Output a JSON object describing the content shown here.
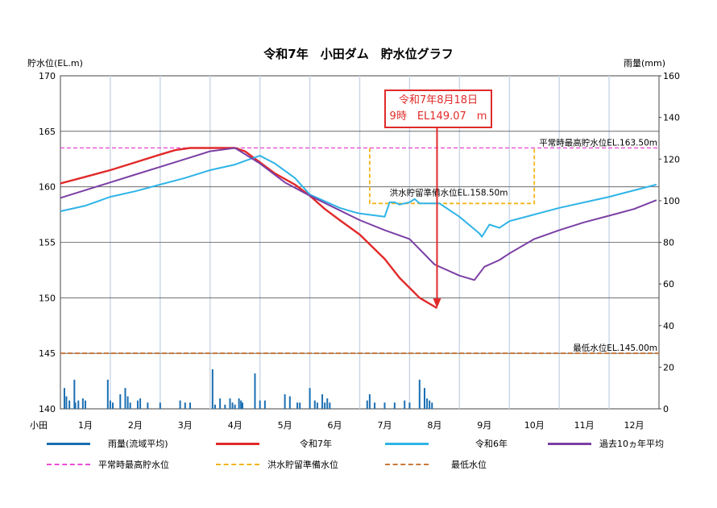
{
  "title": "令和7年　小田ダム　貯水位グラフ",
  "y_left_label": "貯水位(EL.m)",
  "y_right_label": "雨量(mm)",
  "station": "小田",
  "callout": {
    "line1": "令和7年8月18日",
    "line2": "9時　EL149.07　m"
  },
  "annotations": {
    "normal_max": "平常時最高貯水位EL.163.50m",
    "flood_prep": "洪水貯留準備水位EL.158.50m",
    "minimum": "最低水位EL.145.00m"
  },
  "legend": [
    {
      "label": "雨量(流域平均)",
      "color": "#1b6fb3",
      "style": "solid"
    },
    {
      "label": "令和7年",
      "color": "#e12a2a",
      "style": "solid"
    },
    {
      "label": "令和6年",
      "color": "#2fb4e6",
      "style": "solid"
    },
    {
      "label": "過去10ヵ年平均",
      "color": "#7b3fa4",
      "style": "solid"
    },
    {
      "label": "平常時最高貯水位",
      "color": "#e84fd3",
      "style": "dashed"
    },
    {
      "label": "洪水貯留準備水位",
      "color": "#f2b51a",
      "style": "dashed"
    },
    {
      "label": "最低水位",
      "color": "#c87a3c",
      "style": "dashed"
    }
  ],
  "chart_data": {
    "type": "line",
    "categories": [
      "1月",
      "2月",
      "3月",
      "4月",
      "5月",
      "6月",
      "7月",
      "8月",
      "9月",
      "10月",
      "11月",
      "12月"
    ],
    "ylim_left": [
      140,
      170
    ],
    "yticks_left": [
      140,
      145,
      150,
      155,
      160,
      165,
      170
    ],
    "ylim_right": [
      0,
      160
    ],
    "yticks_right": [
      0,
      20,
      40,
      60,
      80,
      100,
      120,
      140,
      160
    ],
    "xlim": [
      0,
      12
    ],
    "reference_levels": {
      "normal_max": 163.5,
      "flood_prep": 158.5,
      "minimum": 145.0
    },
    "series": [
      {
        "name": "令和7年",
        "color": "#e12a2a",
        "x": [
          0.0,
          0.5,
          1.0,
          1.5,
          2.0,
          2.3,
          2.6,
          3.0,
          3.5,
          3.7,
          4.0,
          4.3,
          4.7,
          5.0,
          5.3,
          5.6,
          6.0,
          6.5,
          6.8,
          7.2,
          7.55
        ],
        "y": [
          160.3,
          160.9,
          161.5,
          162.2,
          162.9,
          163.3,
          163.5,
          163.5,
          163.5,
          163.2,
          162.2,
          161.2,
          160.2,
          159.2,
          158.0,
          157.0,
          155.7,
          153.5,
          151.8,
          150.0,
          149.07
        ]
      },
      {
        "name": "令和6年",
        "color": "#2fb4e6",
        "x": [
          0.0,
          0.5,
          1.0,
          1.5,
          2.0,
          2.5,
          3.0,
          3.5,
          3.8,
          4.0,
          4.3,
          4.7,
          5.0,
          5.3,
          5.6,
          5.9,
          6.0,
          6.5,
          6.6,
          6.7,
          6.8,
          7.0,
          7.1,
          7.2,
          7.6,
          8.0,
          8.4,
          8.45,
          8.6,
          8.8,
          9.0,
          10.0,
          11.0,
          11.95
        ],
        "y": [
          157.8,
          158.3,
          159.1,
          159.6,
          160.2,
          160.8,
          161.5,
          162.0,
          162.5,
          162.8,
          162.1,
          160.8,
          159.3,
          158.7,
          158.1,
          157.7,
          157.6,
          157.3,
          158.6,
          158.6,
          158.4,
          158.6,
          158.9,
          158.5,
          158.5,
          157.3,
          155.8,
          155.5,
          156.6,
          156.3,
          156.9,
          158.1,
          159.1,
          160.2
        ]
      },
      {
        "name": "過去10ヵ年平均",
        "color": "#7b3fa4",
        "x": [
          0.0,
          0.5,
          1.0,
          1.5,
          2.0,
          2.5,
          3.0,
          3.5,
          4.0,
          4.5,
          5.0,
          5.5,
          6.0,
          6.5,
          7.0,
          7.5,
          8.0,
          8.3,
          8.5,
          8.8,
          9.0,
          9.5,
          10.0,
          10.5,
          11.0,
          11.5,
          11.95
        ],
        "y": [
          159.0,
          159.7,
          160.4,
          161.1,
          161.8,
          162.5,
          163.2,
          163.5,
          162.1,
          160.4,
          159.2,
          158.1,
          157.0,
          156.1,
          155.3,
          153.0,
          152.0,
          151.6,
          152.8,
          153.4,
          154.0,
          155.3,
          156.1,
          156.8,
          157.4,
          158.0,
          158.8
        ]
      }
    ],
    "rainfall": {
      "name": "雨量(流域平均)",
      "color": "#1b6fb3",
      "x": [
        0.08,
        0.12,
        0.18,
        0.28,
        0.3,
        0.36,
        0.45,
        0.5,
        0.95,
        1.0,
        1.05,
        1.2,
        1.3,
        1.35,
        1.4,
        1.55,
        1.6,
        1.75,
        2.0,
        2.4,
        2.5,
        2.6,
        3.05,
        3.1,
        3.2,
        3.3,
        3.4,
        3.45,
        3.5,
        3.58,
        3.62,
        3.65,
        3.9,
        4.0,
        4.1,
        4.5,
        4.6,
        4.75,
        4.8,
        5.0,
        5.1,
        5.15,
        5.25,
        5.3,
        5.35,
        5.4,
        6.15,
        6.2,
        6.3,
        6.5,
        6.7,
        6.9,
        7.0,
        7.2,
        7.3,
        7.35,
        7.4,
        7.45
      ],
      "values": [
        10,
        6,
        4,
        14,
        3,
        4,
        5,
        4,
        14,
        4,
        3,
        7,
        10,
        6,
        3,
        4,
        5,
        3,
        3,
        4,
        3,
        3,
        19,
        2,
        5,
        2,
        5,
        3,
        2,
        5,
        4,
        3,
        17,
        4,
        4,
        7,
        6,
        3,
        3,
        10,
        4,
        3,
        7,
        3,
        5,
        3,
        4,
        7,
        3,
        3,
        3,
        4,
        3,
        14,
        10,
        5,
        4,
        3
      ]
    }
  }
}
